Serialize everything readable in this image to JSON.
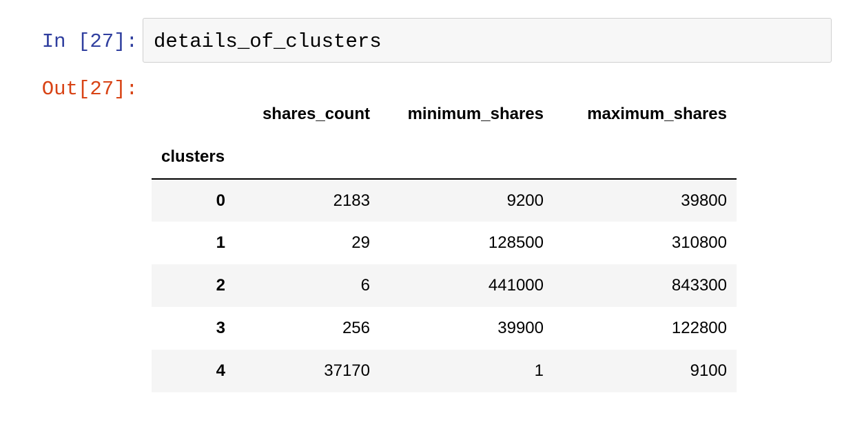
{
  "notebook": {
    "in_prompt": "In [27]:",
    "out_prompt": "Out[27]:",
    "code": "details_of_clusters"
  },
  "dataframe": {
    "index_name": "clusters",
    "columns": [
      "shares_count",
      "minimum_shares",
      "maximum_shares"
    ],
    "rows": [
      {
        "index": "0",
        "values": [
          "2183",
          "9200",
          "39800"
        ]
      },
      {
        "index": "1",
        "values": [
          "29",
          "128500",
          "310800"
        ]
      },
      {
        "index": "2",
        "values": [
          "6",
          "441000",
          "843300"
        ]
      },
      {
        "index": "3",
        "values": [
          "256",
          "39900",
          "122800"
        ]
      },
      {
        "index": "4",
        "values": [
          "37170",
          "1",
          "9100"
        ]
      }
    ]
  }
}
